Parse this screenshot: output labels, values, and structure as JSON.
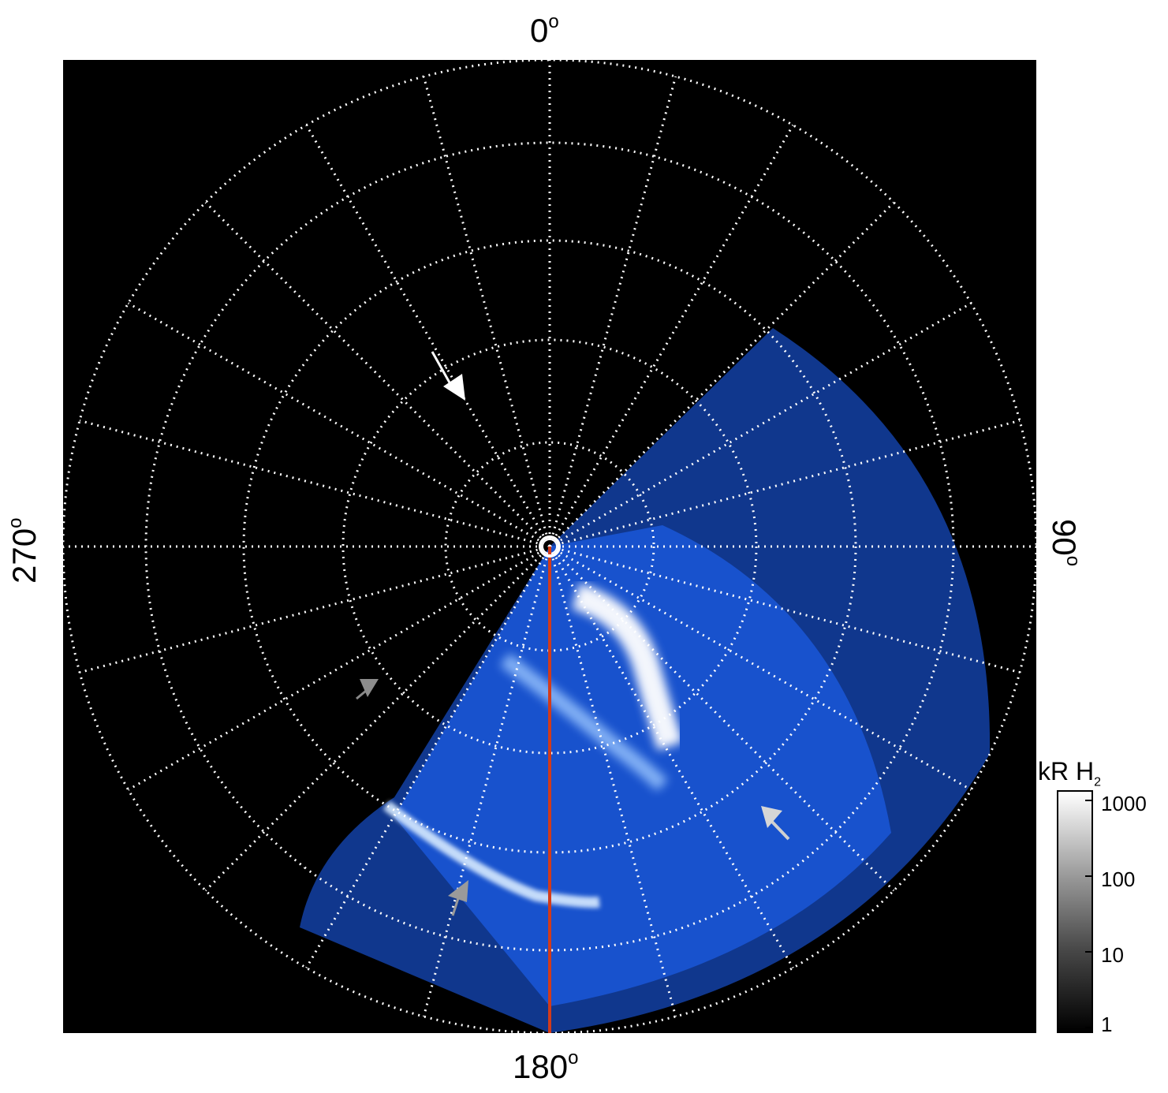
{
  "labels": {
    "top": "0",
    "bottom": "180",
    "left": "270",
    "right": "90",
    "degree_symbol": "o"
  },
  "colorbar": {
    "title_main": "kR H",
    "title_sub": "2",
    "ticks": [
      "1000",
      "100",
      "10",
      "1"
    ]
  },
  "colors": {
    "background": "#000000",
    "grid": "#ffffff",
    "aurora": "#1e63ff",
    "meridian_line": "#d23b1a"
  },
  "icons": [
    "arrow-white",
    "arrow-gray"
  ]
}
